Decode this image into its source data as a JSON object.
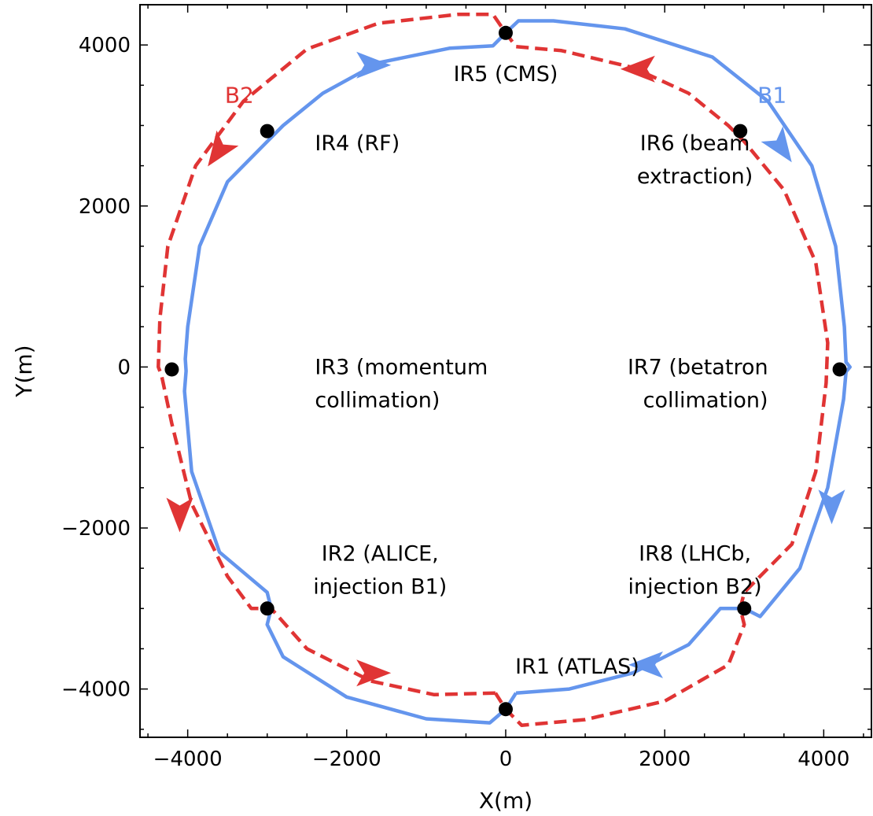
{
  "colors": {
    "b1": "#6495ED",
    "b2": "#E03434",
    "axis": "#000000",
    "marker": "#000000"
  },
  "chart_data": {
    "type": "scatter",
    "title": "",
    "xlabel": "X(m)",
    "ylabel": "Y(m)",
    "xlim": [
      -4600,
      4600
    ],
    "ylim": [
      -4600,
      4500
    ],
    "grid": false,
    "x_ticks": [
      {
        "value": -4000,
        "label": "−4000"
      },
      {
        "value": -2000,
        "label": "−2000"
      },
      {
        "value": 0,
        "label": "0"
      },
      {
        "value": 2000,
        "label": "2000"
      },
      {
        "value": 4000,
        "label": "4000"
      }
    ],
    "y_ticks": [
      {
        "value": 4000,
        "label": "4000"
      },
      {
        "value": 2000,
        "label": "2000"
      },
      {
        "value": 0,
        "label": "0"
      },
      {
        "value": -2000,
        "label": "−2000"
      },
      {
        "value": -4000,
        "label": "−4000"
      }
    ],
    "beams": [
      {
        "name": "B1",
        "color": "#6495ED",
        "style": "solid",
        "direction": "clockwise",
        "points": [
          [
            130,
            -4050
          ],
          [
            800,
            -4000
          ],
          [
            1600,
            -3800
          ],
          [
            2300,
            -3450
          ],
          [
            2700,
            -3000
          ],
          [
            3000,
            -3000
          ],
          [
            3200,
            -3100
          ],
          [
            3700,
            -2500
          ],
          [
            4050,
            -1500
          ],
          [
            4250,
            -400
          ],
          [
            4280,
            -60
          ],
          [
            4330,
            0
          ],
          [
            4280,
            60
          ],
          [
            4260,
            500
          ],
          [
            4150,
            1500
          ],
          [
            3850,
            2500
          ],
          [
            3300,
            3300
          ],
          [
            2600,
            3850
          ],
          [
            1500,
            4200
          ],
          [
            600,
            4300
          ],
          [
            160,
            4300
          ],
          [
            0,
            4150
          ],
          [
            -160,
            3990
          ],
          [
            -700,
            3960
          ],
          [
            -1600,
            3780
          ],
          [
            -2300,
            3400
          ],
          [
            -2800,
            3000
          ],
          [
            -3000,
            2800
          ],
          [
            -3500,
            2300
          ],
          [
            -3850,
            1500
          ],
          [
            -4000,
            500
          ],
          [
            -4030,
            100
          ],
          [
            -4020,
            -50
          ],
          [
            -4040,
            -300
          ],
          [
            -3950,
            -1300
          ],
          [
            -3600,
            -2300
          ],
          [
            -3000,
            -2800
          ],
          [
            -2950,
            -3000
          ],
          [
            -3000,
            -3200
          ],
          [
            -2800,
            -3600
          ],
          [
            -2000,
            -4100
          ],
          [
            -1000,
            -4370
          ],
          [
            -200,
            -4420
          ],
          [
            0,
            -4250
          ],
          [
            130,
            -4050
          ]
        ],
        "arrows": [
          {
            "x": -1700,
            "y": 3750,
            "direction": "east"
          },
          {
            "x": 3450,
            "y": 2750,
            "direction": "south-east"
          },
          {
            "x": 4100,
            "y": -1700,
            "direction": "south"
          },
          {
            "x": 1800,
            "y": -3700,
            "direction": "west"
          }
        ]
      },
      {
        "name": "B2",
        "color": "#E03434",
        "style": "dashed",
        "direction": "counter-clockwise",
        "points": [
          [
            -130,
            -4050
          ],
          [
            -900,
            -4070
          ],
          [
            -1700,
            -3900
          ],
          [
            -2500,
            -3500
          ],
          [
            -2950,
            -3000
          ],
          [
            -3200,
            -3000
          ],
          [
            -3500,
            -2600
          ],
          [
            -3950,
            -1700
          ],
          [
            -4200,
            -700
          ],
          [
            -4330,
            -100
          ],
          [
            -4370,
            0
          ],
          [
            -4350,
            600
          ],
          [
            -4250,
            1500
          ],
          [
            -3900,
            2500
          ],
          [
            -3300,
            3300
          ],
          [
            -2500,
            3950
          ],
          [
            -1600,
            4270
          ],
          [
            -600,
            4380
          ],
          [
            -160,
            4380
          ],
          [
            0,
            4150
          ],
          [
            130,
            3980
          ],
          [
            700,
            3930
          ],
          [
            1600,
            3720
          ],
          [
            2300,
            3400
          ],
          [
            2800,
            3000
          ],
          [
            3000,
            2800
          ],
          [
            3500,
            2200
          ],
          [
            3900,
            1300
          ],
          [
            4050,
            300
          ],
          [
            4030,
            -200
          ],
          [
            3900,
            -1300
          ],
          [
            3600,
            -2200
          ],
          [
            3000,
            -2800
          ],
          [
            2950,
            -3000
          ],
          [
            3000,
            -3200
          ],
          [
            2800,
            -3700
          ],
          [
            2000,
            -4150
          ],
          [
            1000,
            -4380
          ],
          [
            200,
            -4450
          ],
          [
            0,
            -4250
          ],
          [
            -130,
            -4050
          ]
        ],
        "arrows": [
          {
            "x": 1700,
            "y": 3700,
            "direction": "west"
          },
          {
            "x": -3600,
            "y": 2700,
            "direction": "south-west"
          },
          {
            "x": -4100,
            "y": -1800,
            "direction": "south"
          },
          {
            "x": -1700,
            "y": -3800,
            "direction": "east"
          }
        ]
      }
    ],
    "beam_labels": [
      {
        "text": "B1",
        "x": 3350,
        "y": 3380,
        "color": "#6495ED"
      },
      {
        "text": "B2",
        "x": -3350,
        "y": 3380,
        "color": "#E03434"
      }
    ],
    "interaction_points": [
      {
        "x": 0,
        "y": -4250
      },
      {
        "x": -3000,
        "y": -3000
      },
      {
        "x": -4200,
        "y": -30
      },
      {
        "x": -3000,
        "y": 2930
      },
      {
        "x": 0,
        "y": 4150
      },
      {
        "x": 2950,
        "y": 2930
      },
      {
        "x": 4200,
        "y": -30
      },
      {
        "x": 3000,
        "y": -3000
      }
    ],
    "annotations": [
      {
        "lines": [
          "IR1 (ATLAS)"
        ],
        "x": 900,
        "y": -3720,
        "align": "middle"
      },
      {
        "lines": [
          "IR2 (ALICE,",
          "injection B1)"
        ],
        "x": -1580,
        "y": -2320,
        "align": "middle"
      },
      {
        "lines": [
          "IR3 (momentum",
          "collimation)"
        ],
        "x": -2400,
        "y": 0,
        "align": "start"
      },
      {
        "lines": [
          "IR4 (RF)"
        ],
        "x": -2400,
        "y": 2780,
        "align": "start"
      },
      {
        "lines": [
          "IR5 (CMS)"
        ],
        "x": 0,
        "y": 3640,
        "align": "middle"
      },
      {
        "lines": [
          "IR6 (beam",
          "extraction)"
        ],
        "x": 2380,
        "y": 2780,
        "align": "middle"
      },
      {
        "lines": [
          "IR7 (betatron",
          "collimation)"
        ],
        "x": 3300,
        "y": 0,
        "align": "end"
      },
      {
        "lines": [
          "IR8 (LHCb,",
          "injection B2)"
        ],
        "x": 2380,
        "y": -2320,
        "align": "middle"
      }
    ]
  }
}
